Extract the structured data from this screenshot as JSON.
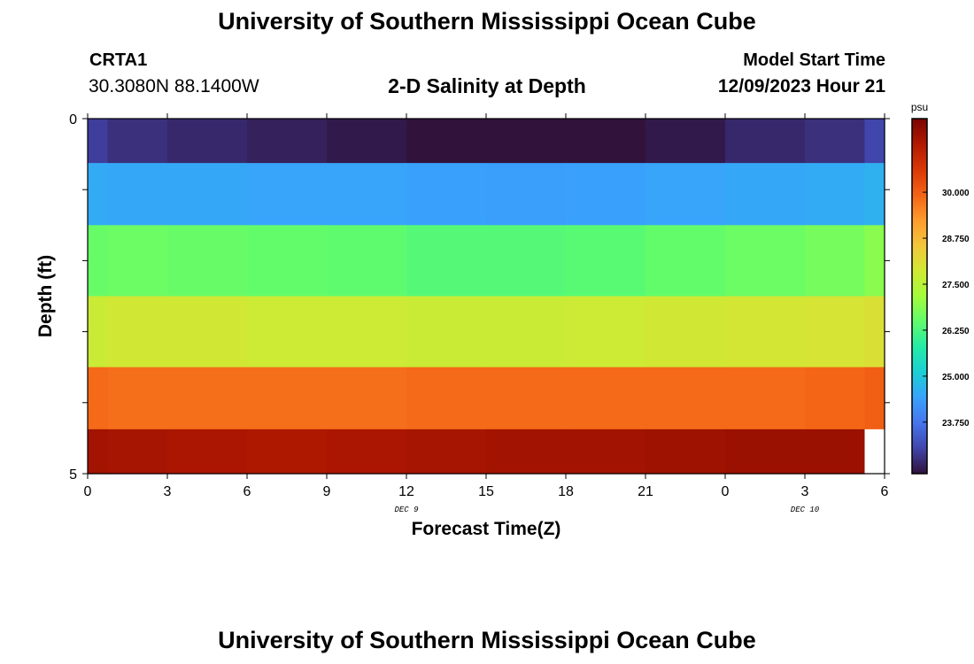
{
  "header": {
    "title": "University of Southern Mississippi Ocean Cube",
    "station_id": "CRTA1",
    "coordinates": "30.3080N  88.1400W",
    "subtitle": "2-D Salinity at Depth",
    "model_start_label": "Model Start Time",
    "model_start_value": "12/09/2023 Hour 21"
  },
  "footer": {
    "title": "University of Southern Mississippi Ocean Cube"
  },
  "chart_data": {
    "type": "heatmap",
    "title": "2-D Salinity at Depth",
    "xlabel": "Forecast Time(Z)",
    "ylabel": "Depth (ft)",
    "x_tick_labels": [
      "0",
      "3",
      "6",
      "9",
      "12",
      "15",
      "18",
      "21",
      "0",
      "3",
      "6"
    ],
    "x_date_labels": [
      {
        "label": "DEC 9",
        "at_tick": 4
      },
      {
        "label": "DEC 10",
        "at_tick": 9
      }
    ],
    "y_tick_labels": [
      "0",
      "5"
    ],
    "ylim": [
      0,
      5
    ],
    "x_hours": [
      0,
      1.5,
      4.5,
      7.5,
      10.5,
      13.5,
      16.5,
      19.5,
      22.5,
      25.5,
      28.5,
      30
    ],
    "depth_layers_ft": [
      0.25,
      1.0,
      2.0,
      3.0,
      4.0,
      4.75
    ],
    "values": [
      [
        22.95,
        22.75,
        22.65,
        22.55,
        22.45,
        22.35,
        22.25,
        22.35,
        22.45,
        22.65,
        22.75,
        23.05
      ],
      [
        24.55,
        24.5,
        24.5,
        24.45,
        24.45,
        24.4,
        24.35,
        24.4,
        24.45,
        24.5,
        24.55,
        24.65
      ],
      [
        26.55,
        26.6,
        26.55,
        26.5,
        26.45,
        26.35,
        26.35,
        26.4,
        26.5,
        26.6,
        26.7,
        26.9
      ],
      [
        27.75,
        27.85,
        27.85,
        27.8,
        27.8,
        27.75,
        27.75,
        27.8,
        27.85,
        27.9,
        27.95,
        28.05
      ],
      [
        29.85,
        29.8,
        29.8,
        29.8,
        29.8,
        29.85,
        29.85,
        29.85,
        29.85,
        29.85,
        29.9,
        30.0
      ],
      [
        31.5,
        31.45,
        31.4,
        31.35,
        31.4,
        31.45,
        31.5,
        31.5,
        31.55,
        31.6,
        31.6,
        null
      ]
    ],
    "colorbar": {
      "unit": "psu",
      "tick_labels": [
        "30.000",
        "28.750",
        "27.500",
        "26.250",
        "25.000",
        "23.750"
      ],
      "tick_values": [
        30.0,
        28.75,
        27.5,
        26.25,
        25.0,
        23.75
      ],
      "range": [
        22.35,
        32.0
      ]
    },
    "colors": {
      "colormap": [
        "#30123b",
        "#4145ab",
        "#4675ed",
        "#39a2fc",
        "#1bcfd4",
        "#24eca6",
        "#61fc6c",
        "#a4fc3b",
        "#d1e834",
        "#f3c63a",
        "#fe9b2d",
        "#f36315",
        "#d93806",
        "#b11901",
        "#7a0402"
      ],
      "missing": "#ffffff"
    },
    "grid": false
  }
}
